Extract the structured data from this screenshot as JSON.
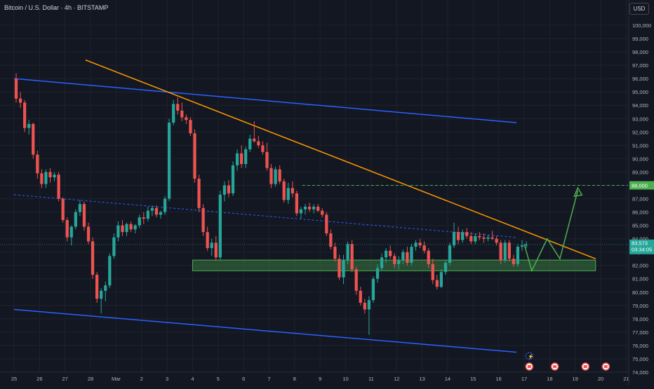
{
  "legend": {
    "symbol": "Bitcoin / U.S. Dollar · 4h · BITSTAMP"
  },
  "currency": "USD",
  "price_labels": {
    "current": "83,573",
    "countdown": "03:34:05",
    "target": "88,000"
  },
  "colors": {
    "background": "#131722",
    "grid": "#1e222d",
    "up": "#26a69a",
    "down": "#ef5350",
    "channel": "#2962ff",
    "trendline": "#ff9800",
    "projection": "#4caf50",
    "zone_fill": "rgba(76,175,80,0.35)",
    "zone_border": "#4caf50"
  },
  "chart_data": {
    "type": "candlestick",
    "title": "Bitcoin / U.S. Dollar · 4h · BITSTAMP",
    "ylim": [
      74000,
      101000
    ],
    "y_ticks": [
      "74,000",
      "75,000",
      "76,000",
      "77,000",
      "78,000",
      "79,000",
      "80,000",
      "81,000",
      "82,000",
      "83,000",
      "84,000",
      "85,000",
      "86,000",
      "87,000",
      "88,000",
      "89,000",
      "90,000",
      "91,000",
      "92,000",
      "93,000",
      "94,000",
      "95,000",
      "96,000",
      "97,000",
      "98,000",
      "99,000",
      "100,000"
    ],
    "x_ticks": [
      "25",
      "26",
      "27",
      "28",
      "Mar",
      "2",
      "3",
      "4",
      "5",
      "6",
      "7",
      "8",
      "9",
      "10",
      "11",
      "12",
      "13",
      "14",
      "15",
      "16",
      "17",
      "18",
      "19",
      "20",
      "21"
    ],
    "x_tick_days": [
      0,
      1,
      2,
      3,
      4,
      5,
      6,
      7,
      8,
      9,
      10,
      11,
      12,
      13,
      14,
      15,
      16,
      17,
      18,
      19,
      20,
      21,
      22,
      23,
      24
    ],
    "candles_per_day": 6,
    "candles": [
      [
        96000,
        96400,
        94200,
        94500
      ],
      [
        94500,
        95000,
        93800,
        94200
      ],
      [
        94200,
        94400,
        92000,
        92300
      ],
      [
        92300,
        92900,
        91800,
        92600
      ],
      [
        92600,
        92700,
        90000,
        90300
      ],
      [
        90300,
        90600,
        88500,
        88900
      ],
      [
        88900,
        89200,
        87800,
        88100
      ],
      [
        88100,
        89200,
        87800,
        89000
      ],
      [
        89000,
        89300,
        88200,
        88600
      ],
      [
        88600,
        89000,
        88300,
        88800
      ],
      [
        88800,
        89000,
        86800,
        87000
      ],
      [
        87000,
        87100,
        85200,
        85400
      ],
      [
        85400,
        85600,
        83800,
        84100
      ],
      [
        84100,
        85000,
        83500,
        84900
      ],
      [
        84900,
        86200,
        84700,
        86000
      ],
      [
        86000,
        86900,
        85700,
        86600
      ],
      [
        86600,
        86800,
        84600,
        84900
      ],
      [
        84900,
        85200,
        83600,
        83800
      ],
      [
        83800,
        84100,
        81000,
        81300
      ],
      [
        81300,
        81500,
        79200,
        79500
      ],
      [
        79500,
        80300,
        78400,
        80100
      ],
      [
        80100,
        80800,
        79300,
        80500
      ],
      [
        80500,
        82900,
        80300,
        82700
      ],
      [
        82700,
        84400,
        82500,
        84100
      ],
      [
        84100,
        85300,
        83800,
        85000
      ],
      [
        85000,
        85400,
        84200,
        84500
      ],
      [
        84500,
        85200,
        84200,
        85100
      ],
      [
        85100,
        85300,
        84500,
        84700
      ],
      [
        84700,
        85100,
        84400,
        85000
      ],
      [
        85000,
        85800,
        84800,
        85600
      ],
      [
        85600,
        86000,
        85100,
        85500
      ],
      [
        85500,
        86400,
        85300,
        86100
      ],
      [
        86100,
        86500,
        85700,
        86300
      ],
      [
        86300,
        86500,
        85600,
        85800
      ],
      [
        85800,
        86100,
        85500,
        86000
      ],
      [
        86000,
        87200,
        85800,
        87000
      ],
      [
        87000,
        93000,
        86800,
        92700
      ],
      [
        92700,
        94400,
        92500,
        94100
      ],
      [
        94100,
        94600,
        93300,
        93600
      ],
      [
        93600,
        94200,
        92800,
        93100
      ],
      [
        93100,
        93300,
        92600,
        92900
      ],
      [
        92900,
        93100,
        91700,
        91900
      ],
      [
        91900,
        92200,
        88200,
        88500
      ],
      [
        88500,
        88800,
        86000,
        86300
      ],
      [
        86300,
        86600,
        84200,
        84500
      ],
      [
        84500,
        84900,
        83100,
        83300
      ],
      [
        83300,
        84000,
        82700,
        83700
      ],
      [
        83700,
        84200,
        82400,
        82600
      ],
      [
        82600,
        87600,
        82400,
        87300
      ],
      [
        87300,
        88300,
        86800,
        88000
      ],
      [
        88000,
        88400,
        87100,
        87400
      ],
      [
        87400,
        89800,
        87200,
        89500
      ],
      [
        89500,
        90700,
        89100,
        90400
      ],
      [
        90400,
        91000,
        89300,
        89600
      ],
      [
        89600,
        90900,
        89300,
        90700
      ],
      [
        90700,
        91800,
        90500,
        91500
      ],
      [
        91500,
        92800,
        91200,
        91300
      ],
      [
        91300,
        91700,
        90800,
        91000
      ],
      [
        91000,
        91300,
        90300,
        90500
      ],
      [
        90500,
        91200,
        89100,
        89300
      ],
      [
        89300,
        89600,
        87800,
        88100
      ],
      [
        88100,
        89400,
        87900,
        89200
      ],
      [
        89200,
        89500,
        88100,
        88300
      ],
      [
        88300,
        88500,
        86700,
        86900
      ],
      [
        86900,
        88200,
        86600,
        87800
      ],
      [
        87800,
        88300,
        87100,
        87400
      ],
      [
        87400,
        87600,
        85700,
        85900
      ],
      [
        85900,
        86400,
        85500,
        86200
      ],
      [
        86200,
        86600,
        85800,
        86400
      ],
      [
        86400,
        86700,
        86000,
        86200
      ],
      [
        86200,
        86600,
        85900,
        86400
      ],
      [
        86400,
        86600,
        86000,
        86100
      ],
      [
        86100,
        86300,
        85600,
        85800
      ],
      [
        85800,
        86000,
        84200,
        84400
      ],
      [
        84400,
        84700,
        83200,
        83400
      ],
      [
        83400,
        83700,
        82300,
        82500
      ],
      [
        82500,
        82800,
        80900,
        81100
      ],
      [
        81100,
        82800,
        80600,
        82400
      ],
      [
        82400,
        83800,
        82100,
        83600
      ],
      [
        83600,
        83900,
        81500,
        81700
      ],
      [
        81700,
        81900,
        79800,
        80100
      ],
      [
        80100,
        80400,
        79000,
        79200
      ],
      [
        79200,
        79500,
        78400,
        78700
      ],
      [
        78700,
        79700,
        76800,
        79400
      ],
      [
        79400,
        81200,
        79200,
        81000
      ],
      [
        81000,
        82100,
        80700,
        81800
      ],
      [
        81800,
        82900,
        81600,
        82600
      ],
      [
        82600,
        83300,
        82200,
        83100
      ],
      [
        83100,
        83500,
        82500,
        82700
      ],
      [
        82700,
        82900,
        81800,
        82100
      ],
      [
        82100,
        82700,
        81700,
        82400
      ],
      [
        82400,
        83200,
        82100,
        83000
      ],
      [
        83000,
        83400,
        82000,
        82200
      ],
      [
        82200,
        83600,
        82000,
        83400
      ],
      [
        83400,
        83900,
        83100,
        83700
      ],
      [
        83700,
        84000,
        83300,
        83500
      ],
      [
        83500,
        83800,
        82900,
        83100
      ],
      [
        83100,
        83300,
        81800,
        82100
      ],
      [
        82100,
        82500,
        80600,
        80900
      ],
      [
        80900,
        81300,
        80200,
        80400
      ],
      [
        80400,
        81700,
        80300,
        81500
      ],
      [
        81500,
        82400,
        81300,
        82200
      ],
      [
        82200,
        83700,
        82000,
        83500
      ],
      [
        83500,
        85200,
        83300,
        84500
      ],
      [
        84500,
        84900,
        83600,
        83900
      ],
      [
        83900,
        84700,
        83700,
        84500
      ],
      [
        84500,
        84800,
        84000,
        84200
      ],
      [
        84200,
        84500,
        83600,
        83800
      ],
      [
        83800,
        84400,
        83600,
        84200
      ],
      [
        84200,
        84500,
        83900,
        84100
      ],
      [
        84100,
        84400,
        83700,
        84000
      ],
      [
        84000,
        84300,
        83800,
        84100
      ],
      [
        84100,
        84600,
        83900,
        84000
      ],
      [
        84000,
        84200,
        83500,
        83700
      ],
      [
        83700,
        83900,
        82100,
        82400
      ],
      [
        82400,
        83900,
        82200,
        83700
      ],
      [
        83700,
        83900,
        82300,
        82500
      ],
      [
        82500,
        82800,
        81900,
        82100
      ],
      [
        82100,
        83600,
        81900,
        83400
      ],
      [
        83400,
        83900,
        83100,
        83500
      ],
      [
        83500,
        83800,
        83300,
        83573
      ]
    ],
    "channel_upper": [
      [
        0,
        96000
      ],
      [
        19.7,
        92700
      ]
    ],
    "channel_lower": [
      [
        0,
        78700
      ],
      [
        19.7,
        75500
      ]
    ],
    "channel_mid": [
      [
        0,
        87300
      ],
      [
        19.7,
        84100
      ]
    ],
    "trendline": [
      [
        2.8,
        97400
      ],
      [
        22.8,
        82500
      ]
    ],
    "support_zone": {
      "from_day": 7,
      "to_day": 22.8,
      "low": 81600,
      "high": 82400
    },
    "target_level": 88000,
    "projection_path": [
      [
        20,
        83600
      ],
      [
        20.3,
        81600
      ],
      [
        20.9,
        84000
      ],
      [
        21.4,
        82500
      ],
      [
        22.1,
        87600
      ]
    ]
  }
}
